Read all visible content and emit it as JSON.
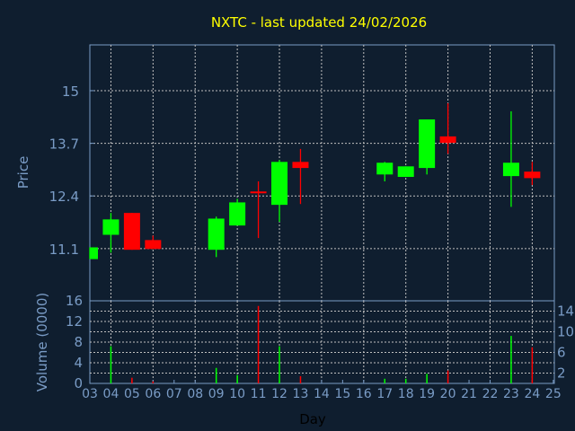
{
  "chart_data": [
    {
      "type": "candlestick",
      "title": "NXTC - last updated 24/02/2026",
      "ylabel": "Price",
      "yticks": [
        "11.1",
        "12.4",
        "13.7",
        "15"
      ],
      "ylim": [
        9.81,
        16.13
      ],
      "grid": true,
      "colors": {
        "up": "#00ff00",
        "down": "#ff0000",
        "title": "#ffff00",
        "axis": "#7a9cc6",
        "grid": "#c0c0c0",
        "background": "#0f1e2f"
      },
      "candles": [
        {
          "day": "03",
          "open": 10.84,
          "high": 11.13,
          "low": 10.84,
          "close": 11.13
        },
        {
          "day": "04",
          "open": 11.44,
          "high": 11.98,
          "low": 11.0,
          "close": 11.82
        },
        {
          "day": "05",
          "open": 11.98,
          "high": 11.98,
          "low": 11.07,
          "close": 11.07
        },
        {
          "day": "06",
          "open": 11.31,
          "high": 11.42,
          "low": 11.09,
          "close": 11.09
        },
        {
          "day": "09",
          "open": 11.07,
          "high": 11.89,
          "low": 10.89,
          "close": 11.84
        },
        {
          "day": "10",
          "open": 11.67,
          "high": 12.33,
          "low": 11.67,
          "close": 12.24
        },
        {
          "day": "11",
          "open": 12.51,
          "high": 12.76,
          "low": 11.36,
          "close": 12.49
        },
        {
          "day": "12",
          "open": 12.18,
          "high": 13.29,
          "low": 11.76,
          "close": 13.24
        },
        {
          "day": "13",
          "open": 13.24,
          "high": 13.56,
          "low": 12.2,
          "close": 13.09
        },
        {
          "day": "17",
          "open": 12.93,
          "high": 13.24,
          "low": 12.76,
          "close": 13.22
        },
        {
          "day": "18",
          "open": 12.87,
          "high": 13.13,
          "low": 12.87,
          "close": 13.13
        },
        {
          "day": "19",
          "open": 13.09,
          "high": 14.29,
          "low": 12.93,
          "close": 14.29
        },
        {
          "day": "20",
          "open": 13.87,
          "high": 14.69,
          "low": 13.44,
          "close": 13.71
        },
        {
          "day": "23",
          "open": 12.89,
          "high": 14.49,
          "low": 12.13,
          "close": 13.22
        },
        {
          "day": "24",
          "open": 13.0,
          "high": 13.24,
          "low": 12.67,
          "close": 12.84
        }
      ]
    },
    {
      "type": "bar",
      "ylabel": "Volume (0000)",
      "xlabel": "Day",
      "yticks": [
        "0",
        "2",
        "4",
        "6",
        "8",
        "10",
        "12",
        "14",
        "16"
      ],
      "ylim": [
        0,
        16
      ],
      "categories": [
        "03",
        "04",
        "05",
        "06",
        "07",
        "08",
        "09",
        "10",
        "11",
        "12",
        "13",
        "14",
        "15",
        "16",
        "17",
        "18",
        "19",
        "20",
        "21",
        "22",
        "23",
        "24",
        "25"
      ],
      "bars": [
        {
          "day": "04",
          "value": 7.2,
          "dir": "up"
        },
        {
          "day": "05",
          "value": 1.1,
          "dir": "down"
        },
        {
          "day": "06",
          "value": 0.4,
          "dir": "down"
        },
        {
          "day": "09",
          "value": 3.0,
          "dir": "up"
        },
        {
          "day": "10",
          "value": 1.6,
          "dir": "up"
        },
        {
          "day": "11",
          "value": 15.0,
          "dir": "down"
        },
        {
          "day": "12",
          "value": 7.2,
          "dir": "up"
        },
        {
          "day": "13",
          "value": 1.4,
          "dir": "down"
        },
        {
          "day": "17",
          "value": 0.9,
          "dir": "up"
        },
        {
          "day": "18",
          "value": 0.9,
          "dir": "up"
        },
        {
          "day": "19",
          "value": 1.85,
          "dir": "up"
        },
        {
          "day": "20",
          "value": 2.5,
          "dir": "down"
        },
        {
          "day": "23",
          "value": 9.2,
          "dir": "up"
        },
        {
          "day": "24",
          "value": 7.0,
          "dir": "down"
        }
      ]
    }
  ]
}
